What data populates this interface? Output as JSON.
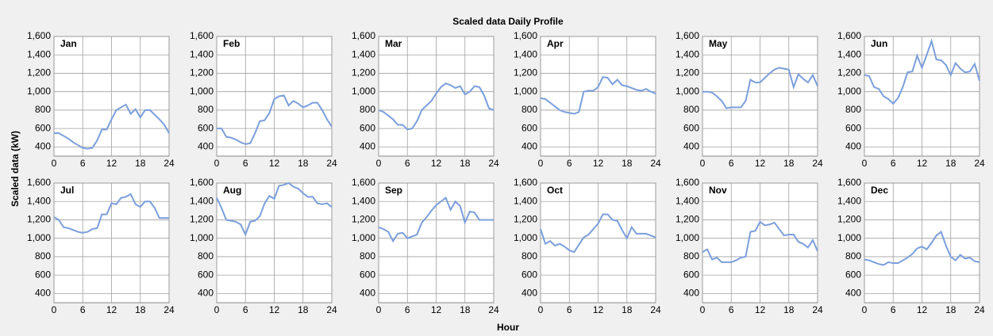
{
  "title": "Scaled data Daily Profile",
  "y_label": "Scaled data (kW)",
  "x_label": "Hour",
  "chart_data": [
    {
      "type": "line",
      "title": "Jan",
      "color": "#7b9fdc",
      "grid": true,
      "xlim": [
        0,
        24
      ],
      "xticks": [
        0,
        6,
        12,
        18,
        24
      ],
      "ylim": [
        300,
        1600
      ],
      "yticks": [
        400,
        600,
        800,
        {
          "value": 1000,
          "label": "1,000"
        },
        {
          "value": 1200,
          "label": "1,200"
        },
        {
          "value": 1400,
          "label": "1,400"
        },
        {
          "value": 1600,
          "label": "1,600"
        }
      ],
      "x": [
        0,
        1,
        2,
        3,
        4,
        5,
        6,
        7,
        8,
        9,
        10,
        11,
        12,
        13,
        14,
        15,
        16,
        17,
        18,
        19,
        20,
        21,
        22,
        23,
        24
      ],
      "values": [
        550,
        550,
        520,
        490,
        450,
        420,
        390,
        380,
        390,
        470,
        590,
        590,
        700,
        800,
        830,
        860,
        760,
        810,
        720,
        800,
        800,
        750,
        700,
        640,
        550
      ]
    },
    {
      "type": "line",
      "title": "Feb",
      "color": "#7b9fdc",
      "grid": true,
      "xlim": [
        0,
        24
      ],
      "xticks": [
        0,
        6,
        12,
        18,
        24
      ],
      "ylim": [
        300,
        1600
      ],
      "yticks": [
        400,
        600,
        800,
        {
          "value": 1000,
          "label": "1,000"
        },
        {
          "value": 1200,
          "label": "1,200"
        },
        {
          "value": 1400,
          "label": "1,400"
        },
        {
          "value": 1600,
          "label": "1,600"
        }
      ],
      "x": [
        0,
        1,
        2,
        3,
        4,
        5,
        6,
        7,
        8,
        9,
        10,
        11,
        12,
        13,
        14,
        15,
        16,
        17,
        18,
        19,
        20,
        21,
        22,
        23,
        24
      ],
      "values": [
        600,
        600,
        510,
        500,
        480,
        450,
        430,
        440,
        550,
        680,
        690,
        770,
        920,
        950,
        960,
        850,
        900,
        870,
        830,
        850,
        880,
        880,
        800,
        700,
        620
      ]
    },
    {
      "type": "line",
      "title": "Mar",
      "color": "#7b9fdc",
      "grid": true,
      "xlim": [
        0,
        24
      ],
      "xticks": [
        0,
        6,
        12,
        18,
        24
      ],
      "ylim": [
        300,
        1600
      ],
      "yticks": [
        400,
        600,
        800,
        {
          "value": 1000,
          "label": "1,000"
        },
        {
          "value": 1200,
          "label": "1,200"
        },
        {
          "value": 1400,
          "label": "1,400"
        },
        {
          "value": 1600,
          "label": "1,600"
        }
      ],
      "x": [
        0,
        1,
        2,
        3,
        4,
        5,
        6,
        7,
        8,
        9,
        10,
        11,
        12,
        13,
        14,
        15,
        16,
        17,
        18,
        19,
        20,
        21,
        22,
        23,
        24
      ],
      "values": [
        800,
        780,
        740,
        700,
        640,
        640,
        590,
        600,
        680,
        800,
        850,
        900,
        980,
        1050,
        1090,
        1070,
        1040,
        1060,
        970,
        1000,
        1060,
        1050,
        960,
        820,
        800
      ]
    },
    {
      "type": "line",
      "title": "Apr",
      "color": "#7b9fdc",
      "grid": true,
      "xlim": [
        0,
        24
      ],
      "xticks": [
        0,
        6,
        12,
        18,
        24
      ],
      "ylim": [
        300,
        1600
      ],
      "yticks": [
        400,
        600,
        800,
        {
          "value": 1000,
          "label": "1,000"
        },
        {
          "value": 1200,
          "label": "1,200"
        },
        {
          "value": 1400,
          "label": "1,400"
        },
        {
          "value": 1600,
          "label": "1,600"
        }
      ],
      "x": [
        0,
        1,
        2,
        3,
        4,
        5,
        6,
        7,
        8,
        9,
        10,
        11,
        12,
        13,
        14,
        15,
        16,
        17,
        18,
        19,
        20,
        21,
        22,
        23,
        24
      ],
      "values": [
        930,
        920,
        880,
        840,
        800,
        780,
        770,
        760,
        780,
        1000,
        1010,
        1010,
        1050,
        1160,
        1150,
        1080,
        1130,
        1070,
        1060,
        1040,
        1020,
        1010,
        1030,
        1000,
        980
      ]
    },
    {
      "type": "line",
      "title": "May",
      "color": "#7b9fdc",
      "grid": true,
      "xlim": [
        0,
        24
      ],
      "xticks": [
        0,
        6,
        12,
        18,
        24
      ],
      "ylim": [
        300,
        1600
      ],
      "yticks": [
        400,
        600,
        800,
        {
          "value": 1000,
          "label": "1,000"
        },
        {
          "value": 1200,
          "label": "1,200"
        },
        {
          "value": 1400,
          "label": "1,400"
        },
        {
          "value": 1600,
          "label": "1,600"
        }
      ],
      "x": [
        0,
        1,
        2,
        3,
        4,
        5,
        6,
        7,
        8,
        9,
        10,
        11,
        12,
        13,
        14,
        15,
        16,
        17,
        18,
        19,
        20,
        21,
        22,
        23,
        24
      ],
      "values": [
        1000,
        1000,
        990,
        950,
        900,
        820,
        830,
        830,
        830,
        900,
        1130,
        1100,
        1100,
        1150,
        1200,
        1240,
        1260,
        1250,
        1240,
        1050,
        1190,
        1140,
        1100,
        1180,
        1060
      ]
    },
    {
      "type": "line",
      "title": "Jun",
      "color": "#7b9fdc",
      "grid": true,
      "xlim": [
        0,
        24
      ],
      "xticks": [
        0,
        6,
        12,
        18,
        24
      ],
      "ylim": [
        300,
        1600
      ],
      "yticks": [
        400,
        600,
        800,
        {
          "value": 1000,
          "label": "1,000"
        },
        {
          "value": 1200,
          "label": "1,200"
        },
        {
          "value": 1400,
          "label": "1,400"
        },
        {
          "value": 1600,
          "label": "1,600"
        }
      ],
      "x": [
        0,
        1,
        2,
        3,
        4,
        5,
        6,
        7,
        8,
        9,
        10,
        11,
        12,
        13,
        14,
        15,
        16,
        17,
        18,
        19,
        20,
        21,
        22,
        23,
        24
      ],
      "values": [
        1180,
        1170,
        1050,
        1030,
        950,
        920,
        870,
        930,
        1050,
        1210,
        1220,
        1390,
        1260,
        1400,
        1550,
        1350,
        1340,
        1290,
        1180,
        1310,
        1250,
        1210,
        1220,
        1300,
        1120
      ]
    },
    {
      "type": "line",
      "title": "Jul",
      "color": "#7b9fdc",
      "grid": true,
      "xlim": [
        0,
        24
      ],
      "xticks": [
        0,
        6,
        12,
        18,
        24
      ],
      "ylim": [
        300,
        1600
      ],
      "yticks": [
        400,
        600,
        800,
        {
          "value": 1000,
          "label": "1,000"
        },
        {
          "value": 1200,
          "label": "1,200"
        },
        {
          "value": 1400,
          "label": "1,400"
        },
        {
          "value": 1600,
          "label": "1,600"
        }
      ],
      "x": [
        0,
        1,
        2,
        3,
        4,
        5,
        6,
        7,
        8,
        9,
        10,
        11,
        12,
        13,
        14,
        15,
        16,
        17,
        18,
        19,
        20,
        21,
        22,
        23,
        24
      ],
      "values": [
        1230,
        1200,
        1120,
        1110,
        1090,
        1070,
        1060,
        1070,
        1100,
        1110,
        1260,
        1260,
        1380,
        1370,
        1440,
        1450,
        1480,
        1370,
        1340,
        1400,
        1400,
        1330,
        1220,
        1220,
        1220
      ]
    },
    {
      "type": "line",
      "title": "Aug",
      "color": "#7b9fdc",
      "grid": true,
      "xlim": [
        0,
        24
      ],
      "xticks": [
        0,
        6,
        12,
        18,
        24
      ],
      "ylim": [
        300,
        1600
      ],
      "yticks": [
        400,
        600,
        800,
        {
          "value": 1000,
          "label": "1,000"
        },
        {
          "value": 1200,
          "label": "1,200"
        },
        {
          "value": 1400,
          "label": "1,400"
        },
        {
          "value": 1600,
          "label": "1,600"
        }
      ],
      "x": [
        0,
        1,
        2,
        3,
        4,
        5,
        6,
        7,
        8,
        9,
        10,
        11,
        12,
        13,
        14,
        15,
        16,
        17,
        18,
        19,
        20,
        21,
        22,
        23,
        24
      ],
      "values": [
        1440,
        1330,
        1200,
        1190,
        1180,
        1150,
        1040,
        1180,
        1190,
        1240,
        1380,
        1460,
        1430,
        1570,
        1580,
        1600,
        1560,
        1540,
        1490,
        1450,
        1450,
        1380,
        1370,
        1380,
        1340
      ]
    },
    {
      "type": "line",
      "title": "Sep",
      "color": "#7b9fdc",
      "grid": true,
      "xlim": [
        0,
        24
      ],
      "xticks": [
        0,
        6,
        12,
        18,
        24
      ],
      "ylim": [
        300,
        1600
      ],
      "yticks": [
        400,
        600,
        800,
        {
          "value": 1000,
          "label": "1,000"
        },
        {
          "value": 1200,
          "label": "1,200"
        },
        {
          "value": 1400,
          "label": "1,400"
        },
        {
          "value": 1600,
          "label": "1,600"
        }
      ],
      "x": [
        0,
        1,
        2,
        3,
        4,
        5,
        6,
        7,
        8,
        9,
        10,
        11,
        12,
        13,
        14,
        15,
        16,
        17,
        18,
        19,
        20,
        21,
        22,
        23,
        24
      ],
      "values": [
        1120,
        1100,
        1070,
        970,
        1050,
        1060,
        1000,
        1020,
        1040,
        1170,
        1230,
        1300,
        1360,
        1400,
        1440,
        1310,
        1400,
        1350,
        1170,
        1290,
        1280,
        1200,
        1200,
        1200,
        1200
      ]
    },
    {
      "type": "line",
      "title": "Oct",
      "color": "#7b9fdc",
      "grid": true,
      "xlim": [
        0,
        24
      ],
      "xticks": [
        0,
        6,
        12,
        18,
        24
      ],
      "ylim": [
        300,
        1600
      ],
      "yticks": [
        400,
        600,
        800,
        {
          "value": 1000,
          "label": "1,000"
        },
        {
          "value": 1200,
          "label": "1,200"
        },
        {
          "value": 1400,
          "label": "1,400"
        },
        {
          "value": 1600,
          "label": "1,600"
        }
      ],
      "x": [
        0,
        1,
        2,
        3,
        4,
        5,
        6,
        7,
        8,
        9,
        10,
        11,
        12,
        13,
        14,
        15,
        16,
        17,
        18,
        19,
        20,
        21,
        22,
        23,
        24
      ],
      "values": [
        1100,
        940,
        970,
        920,
        940,
        910,
        870,
        850,
        930,
        1010,
        1040,
        1100,
        1160,
        1260,
        1260,
        1200,
        1190,
        1090,
        1000,
        1120,
        1050,
        1050,
        1050,
        1030,
        1010
      ]
    },
    {
      "type": "line",
      "title": "Nov",
      "color": "#7b9fdc",
      "grid": true,
      "xlim": [
        0,
        24
      ],
      "xticks": [
        0,
        6,
        12,
        18,
        24
      ],
      "ylim": [
        300,
        1600
      ],
      "yticks": [
        400,
        600,
        800,
        {
          "value": 1000,
          "label": "1,000"
        },
        {
          "value": 1200,
          "label": "1,200"
        },
        {
          "value": 1400,
          "label": "1,400"
        },
        {
          "value": 1600,
          "label": "1,600"
        }
      ],
      "x": [
        0,
        1,
        2,
        3,
        4,
        5,
        6,
        7,
        8,
        9,
        10,
        11,
        12,
        13,
        14,
        15,
        16,
        17,
        18,
        19,
        20,
        21,
        22,
        23,
        24
      ],
      "values": [
        850,
        880,
        770,
        790,
        740,
        740,
        740,
        760,
        790,
        800,
        1070,
        1080,
        1180,
        1140,
        1150,
        1170,
        1100,
        1030,
        1040,
        1040,
        960,
        940,
        900,
        980,
        860
      ]
    },
    {
      "type": "line",
      "title": "Dec",
      "color": "#7b9fdc",
      "grid": true,
      "xlim": [
        0,
        24
      ],
      "xticks": [
        0,
        6,
        12,
        18,
        24
      ],
      "ylim": [
        300,
        1600
      ],
      "yticks": [
        400,
        600,
        800,
        {
          "value": 1000,
          "label": "1,000"
        },
        {
          "value": 1200,
          "label": "1,200"
        },
        {
          "value": 1400,
          "label": "1,400"
        },
        {
          "value": 1600,
          "label": "1,600"
        }
      ],
      "x": [
        0,
        1,
        2,
        3,
        4,
        5,
        6,
        7,
        8,
        9,
        10,
        11,
        12,
        13,
        14,
        15,
        16,
        17,
        18,
        19,
        20,
        21,
        22,
        23,
        24
      ],
      "values": [
        770,
        760,
        740,
        720,
        710,
        740,
        730,
        730,
        760,
        790,
        830,
        890,
        910,
        880,
        950,
        1030,
        1070,
        920,
        800,
        760,
        820,
        780,
        790,
        750,
        740
      ]
    }
  ]
}
